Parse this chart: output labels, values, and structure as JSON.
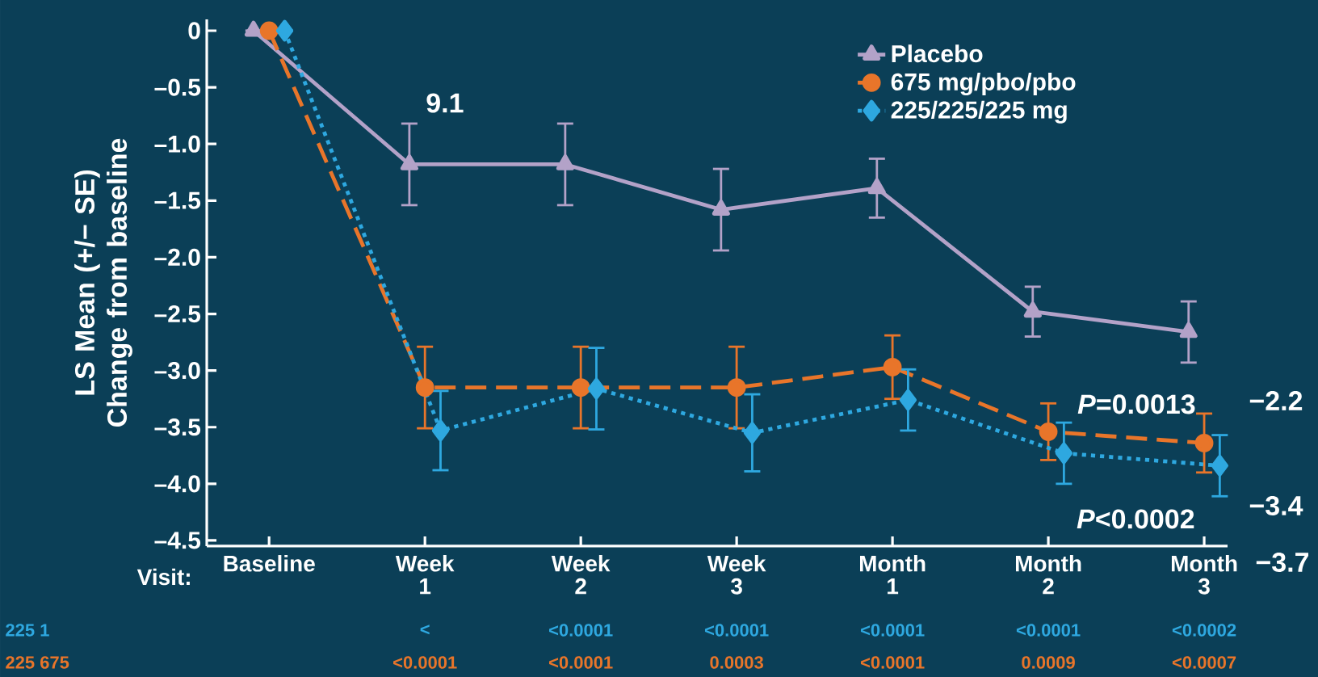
{
  "chart_data": {
    "type": "line",
    "ylabel": "LS Mean (+/− SE) Change from baseline",
    "categories": [
      "Baseline",
      "Week 1",
      "Week 2",
      "Week 3",
      "Month 1",
      "Month 2",
      "Month 3"
    ],
    "ylim": [
      -4.55,
      0.1
    ],
    "yticks": [
      0,
      {
        "value": -0.5,
        "label": "–0.5"
      },
      {
        "value": -1,
        "label": "–1.0"
      },
      {
        "value": -1.5,
        "label": "–1.5"
      },
      {
        "value": -2,
        "label": "–2.0"
      },
      {
        "value": -2.5,
        "label": "–2.5"
      },
      {
        "value": -3,
        "label": "–3.0"
      },
      {
        "value": -3.5,
        "label": "–3.5"
      },
      {
        "value": -4,
        "label": "–4.0"
      },
      {
        "value": -4.5,
        "label": "–4.5"
      }
    ],
    "legend": "top right",
    "series": [
      {
        "name": "Placebo",
        "color": "#b3a2c8",
        "marker": "triangle",
        "line_style": "solid",
        "values": [
          0,
          -1.18,
          -1.18,
          -1.58,
          -1.39,
          -2.48,
          -2.66
        ],
        "errors": [
          null,
          0.36,
          0.36,
          0.36,
          0.26,
          0.22,
          0.27
        ]
      },
      {
        "name": "675 mg/pbo/pbo",
        "color": "#e8752a",
        "marker": "circle",
        "line_style": "dashed",
        "values": [
          0,
          -3.15,
          -3.15,
          -3.15,
          -2.97,
          -3.54,
          -3.64
        ],
        "errors": [
          null,
          0.36,
          0.36,
          0.36,
          0.28,
          0.25,
          0.26
        ]
      },
      {
        "name": "225/225/225 mg",
        "color": "#2ea8e0",
        "marker": "diamond",
        "line_style": "dotted",
        "values": [
          0,
          -3.53,
          -3.16,
          -3.55,
          -3.26,
          -3.73,
          -3.84
        ],
        "errors": [
          null,
          0.35,
          0.36,
          0.34,
          0.27,
          0.27,
          0.27
        ]
      }
    ],
    "annotations": [
      "9.1",
      "*P*=0.0013",
      "*P*<0.0002",
      "−2.2",
      "−3.4",
      "−3.7",
      "Visit:",
      "225 1",
      "<",
      "<0.0001",
      "<0.0001",
      "<0.0001",
      "<0.0001",
      "<0.0002",
      "225 675",
      "<0.0001",
      "<0.0001",
      "0.0003",
      "<0.0001",
      "0.0009",
      "<0.0007"
    ]
  }
}
